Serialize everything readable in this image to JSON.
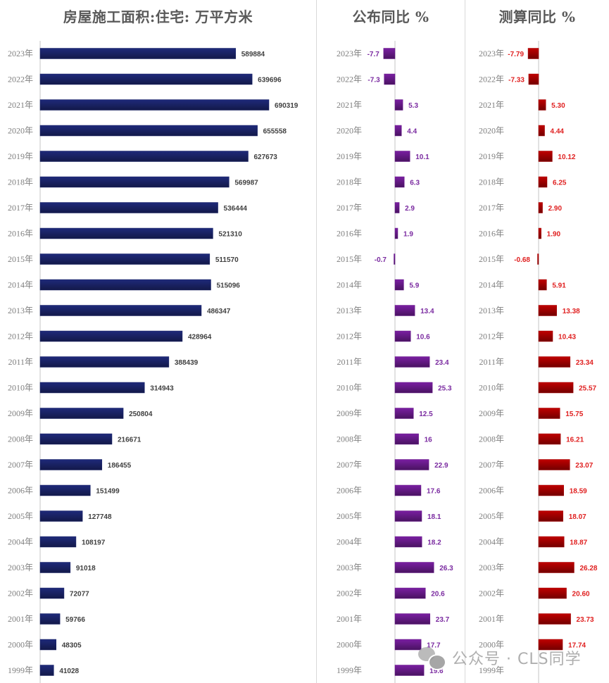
{
  "categories": [
    "2023年",
    "2022年",
    "2021年",
    "2020年",
    "2019年",
    "2018年",
    "2017年",
    "2016年",
    "2015年",
    "2014年",
    "2013年",
    "2012年",
    "2011年",
    "2010年",
    "2009年",
    "2008年",
    "2007年",
    "2006年",
    "2005年",
    "2004年",
    "2003年",
    "2002年",
    "2001年",
    "2000年",
    "1999年"
  ],
  "chart_data": [
    {
      "type": "bar",
      "orientation": "horizontal",
      "title": "房屋施工面积:住宅: 万平方米",
      "xlabel": "",
      "ylabel": "",
      "categories": [
        "2023年",
        "2022年",
        "2021年",
        "2020年",
        "2019年",
        "2018年",
        "2017年",
        "2016年",
        "2015年",
        "2014年",
        "2013年",
        "2012年",
        "2011年",
        "2010年",
        "2009年",
        "2008年",
        "2007年",
        "2006年",
        "2005年",
        "2004年",
        "2003年",
        "2002年",
        "2001年",
        "2000年",
        "1999年"
      ],
      "values": [
        589884,
        639696,
        690319,
        655558,
        627673,
        569987,
        536444,
        521310,
        511570,
        515096,
        486347,
        428964,
        388439,
        314943,
        250804,
        216671,
        186455,
        151499,
        127748,
        108197,
        91018,
        72077,
        59766,
        48305,
        41028
      ],
      "value_labels": [
        "589884",
        "639696",
        "690319",
        "655558",
        "627673",
        "569987",
        "536444",
        "521310",
        "511570",
        "515096",
        "486347",
        "428964",
        "388439",
        "314943",
        "250804",
        "216671",
        "186455",
        "151499",
        "127748",
        "108197",
        "91018",
        "72077",
        "59766",
        "48305",
        "41028"
      ],
      "xlim": [
        0,
        700000
      ],
      "grid": false,
      "color": "#1f2a7a",
      "label_color": "#404040"
    },
    {
      "type": "bar",
      "orientation": "horizontal",
      "title": "公布同比 %",
      "xlabel": "",
      "ylabel": "",
      "categories": [
        "2023年",
        "2022年",
        "2021年",
        "2020年",
        "2019年",
        "2018年",
        "2017年",
        "2016年",
        "2015年",
        "2014年",
        "2013年",
        "2012年",
        "2011年",
        "2010年",
        "2009年",
        "2008年",
        "2007年",
        "2006年",
        "2005年",
        "2004年",
        "2003年",
        "2002年",
        "2001年",
        "2000年",
        "1999年"
      ],
      "values": [
        -7.7,
        -7.3,
        5.3,
        4.4,
        10.1,
        6.3,
        2.9,
        1.9,
        -0.7,
        5.9,
        13.4,
        10.6,
        23.4,
        25.3,
        12.5,
        16,
        22.9,
        17.6,
        18.1,
        18.2,
        26.3,
        20.6,
        23.7,
        17.7,
        19.6
      ],
      "value_labels": [
        "-7.7",
        "-7.3",
        "5.3",
        "4.4",
        "10.1",
        "6.3",
        "2.9",
        "1.9",
        "-0.7",
        "5.9",
        "13.4",
        "10.6",
        "23.4",
        "25.3",
        "12.5",
        "16",
        "22.9",
        "17.6",
        "18.1",
        "18.2",
        "26.3",
        "20.6",
        "23.7",
        "17.7",
        "19.6"
      ],
      "xlim": [
        -10,
        30
      ],
      "grid": false,
      "color": "#7a1fa2",
      "label_color": "#7a2aa0"
    },
    {
      "type": "bar",
      "orientation": "horizontal",
      "title": "测算同比 %",
      "xlabel": "",
      "ylabel": "",
      "categories": [
        "2023年",
        "2022年",
        "2021年",
        "2020年",
        "2019年",
        "2018年",
        "2017年",
        "2016年",
        "2015年",
        "2014年",
        "2013年",
        "2012年",
        "2011年",
        "2010年",
        "2009年",
        "2008年",
        "2007年",
        "2006年",
        "2005年",
        "2004年",
        "2003年",
        "2002年",
        "2001年",
        "2000年",
        "1999年"
      ],
      "values": [
        -7.79,
        -7.33,
        5.3,
        4.44,
        10.12,
        6.25,
        2.9,
        1.9,
        -0.68,
        5.91,
        13.38,
        10.43,
        23.34,
        25.57,
        15.75,
        16.21,
        23.07,
        18.59,
        18.07,
        18.87,
        26.28,
        20.6,
        23.73,
        17.74,
        null
      ],
      "value_labels": [
        "-7.79",
        "-7.33",
        "5.30",
        "4.44",
        "10.12",
        "6.25",
        "2.90",
        "1.90",
        "-0.68",
        "5.91",
        "13.38",
        "10.43",
        "23.34",
        "25.57",
        "15.75",
        "16.21",
        "23.07",
        "18.59",
        "18.07",
        "18.87",
        "26.28",
        "20.60",
        "23.73",
        "17.74",
        ""
      ],
      "xlim": [
        -10,
        30
      ],
      "grid": false,
      "color": "#c00000",
      "label_color": "#e02020"
    }
  ],
  "watermark": {
    "icon": "wechat-icon",
    "text": "公众号 · CLS同学"
  }
}
